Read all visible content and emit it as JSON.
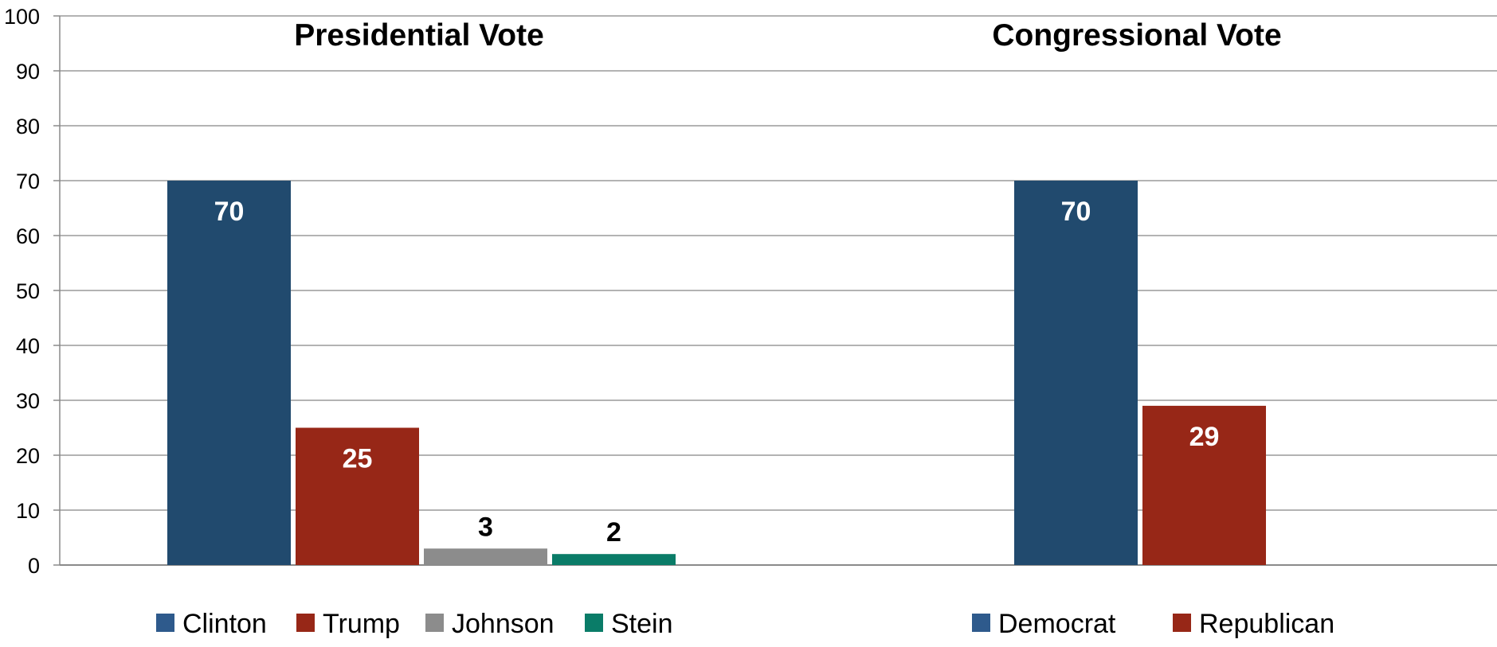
{
  "chart_data": {
    "type": "bar",
    "ylim": [
      0,
      100
    ],
    "yticks": [
      0,
      10,
      20,
      30,
      40,
      50,
      60,
      70,
      80,
      90,
      100
    ],
    "grid": true,
    "legend_position": "bottom",
    "panels": [
      {
        "title": "Presidential Vote",
        "categories": [
          "Clinton",
          "Trump",
          "Johnson",
          "Stein"
        ],
        "values": [
          70,
          25,
          3,
          2
        ],
        "colors": [
          "#214a6e",
          "#972717",
          "#8c8c8c",
          "#0a7c68"
        ],
        "legend_colors": [
          "#2e5a8c",
          "#972717",
          "#8c8c8c",
          "#0a7c68"
        ]
      },
      {
        "title": "Congressional Vote",
        "categories": [
          "Democrat",
          "Republican"
        ],
        "values": [
          70,
          29
        ],
        "colors": [
          "#214a6e",
          "#972717"
        ],
        "legend_colors": [
          "#2e5a8c",
          "#972717"
        ]
      }
    ]
  }
}
